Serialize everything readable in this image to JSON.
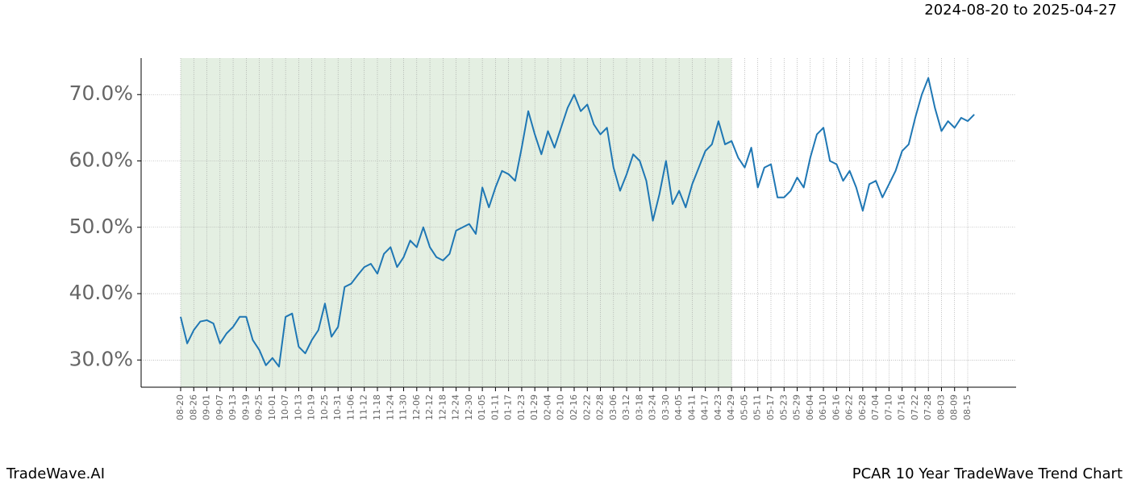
{
  "chart_data": {
    "type": "line",
    "subtitle": "2024-08-20 to 2025-04-27",
    "brand": "TradeWave.AI",
    "title": "PCAR 10 Year TradeWave Trend Chart",
    "x": [
      "08-20",
      "08-23",
      "08-26",
      "08-29",
      "09-01",
      "09-04",
      "09-07",
      "09-10",
      "09-13",
      "09-16",
      "09-19",
      "09-22",
      "09-25",
      "09-28",
      "10-01",
      "10-04",
      "10-07",
      "10-10",
      "10-13",
      "10-16",
      "10-19",
      "10-22",
      "10-25",
      "10-28",
      "10-31",
      "11-03",
      "11-06",
      "11-09",
      "11-12",
      "11-15",
      "11-18",
      "11-21",
      "11-24",
      "11-27",
      "11-30",
      "12-03",
      "12-06",
      "12-09",
      "12-12",
      "12-15",
      "12-18",
      "12-21",
      "12-24",
      "12-27",
      "12-30",
      "01-02",
      "01-05",
      "01-08",
      "01-11",
      "01-14",
      "01-17",
      "01-20",
      "01-23",
      "01-26",
      "01-29",
      "02-01",
      "02-04",
      "02-07",
      "02-10",
      "02-13",
      "02-16",
      "02-19",
      "02-22",
      "02-25",
      "02-28",
      "03-03",
      "03-06",
      "03-09",
      "03-12",
      "03-15",
      "03-18",
      "03-21",
      "03-24",
      "03-27",
      "03-30",
      "04-02",
      "04-05",
      "04-08",
      "04-11",
      "04-14",
      "04-17",
      "04-20",
      "04-23",
      "04-26",
      "04-29",
      "05-02",
      "05-05",
      "05-08",
      "05-11",
      "05-14",
      "05-17",
      "05-20",
      "05-23",
      "05-26",
      "05-29",
      "06-01",
      "06-04",
      "06-07",
      "06-10",
      "06-13",
      "06-16",
      "06-19",
      "06-22",
      "06-25",
      "06-28",
      "07-01",
      "07-04",
      "07-07",
      "07-10",
      "07-13",
      "07-16",
      "07-19",
      "07-22",
      "07-25",
      "07-28",
      "07-31",
      "08-03",
      "08-06",
      "08-09",
      "08-12",
      "08-15",
      "08-18"
    ],
    "values": [
      36.5,
      32.5,
      34.5,
      35.8,
      36,
      35.5,
      32.5,
      34,
      35,
      36.5,
      36.5,
      33,
      31.5,
      29.2,
      30.3,
      29,
      36.5,
      37,
      32,
      31,
      33,
      34.5,
      38.5,
      33.5,
      35,
      41,
      41.5,
      42.8,
      44,
      44.5,
      43,
      46,
      47,
      44,
      45.5,
      48,
      47,
      50,
      47,
      45.5,
      45,
      46,
      49.5,
      50,
      50.5,
      49,
      56,
      53,
      56,
      58.5,
      58,
      57,
      62,
      67.5,
      64,
      61,
      64.5,
      62,
      65,
      68,
      70,
      67.5,
      68.5,
      65.5,
      64,
      65,
      59,
      55.5,
      58,
      61,
      60,
      57,
      51,
      55,
      60,
      53.5,
      55.5,
      53,
      56.5,
      59,
      61.5,
      62.5,
      66,
      62.5,
      63,
      60.5,
      59,
      62,
      56,
      59,
      59.5,
      54.5,
      54.5,
      55.5,
      57.5,
      56,
      60.5,
      64,
      65,
      60,
      59.5,
      57,
      58.5,
      56,
      52.5,
      56.5,
      57,
      54.5,
      56.5,
      58.5,
      61.5,
      62.5,
      66.5,
      70,
      72.5,
      68,
      64.5,
      66,
      65,
      66.5,
      66,
      67
    ],
    "color": "#1f77b4",
    "shade": [
      "08-20",
      "04-29"
    ],
    "ylim": [
      25.9,
      75.5
    ],
    "yticks": [
      {
        "value": 30,
        "label": "30.0%"
      },
      {
        "value": 40,
        "label": "40.0%"
      },
      {
        "value": 50,
        "label": "50.0%"
      },
      {
        "value": 60,
        "label": "60.0%"
      },
      {
        "value": 70,
        "label": "70.0%"
      }
    ],
    "xticks": [
      "08-20",
      "08-26",
      "09-01",
      "09-07",
      "09-13",
      "09-19",
      "09-25",
      "10-01",
      "10-07",
      "10-13",
      "10-19",
      "10-25",
      "10-31",
      "11-06",
      "11-12",
      "11-18",
      "11-24",
      "11-30",
      "12-06",
      "12-12",
      "12-18",
      "12-24",
      "12-30",
      "01-05",
      "01-11",
      "01-17",
      "01-23",
      "01-29",
      "02-04",
      "02-10",
      "02-16",
      "02-22",
      "02-28",
      "03-06",
      "03-12",
      "03-18",
      "03-24",
      "03-30",
      "04-05",
      "04-11",
      "04-17",
      "04-23",
      "04-29",
      "05-05",
      "05-11",
      "05-17",
      "05-23",
      "05-29",
      "06-04",
      "06-10",
      "06-16",
      "06-22",
      "06-28",
      "07-04",
      "07-10",
      "07-16",
      "07-22",
      "07-28",
      "08-03",
      "08-09",
      "08-15"
    ],
    "grid": true
  }
}
